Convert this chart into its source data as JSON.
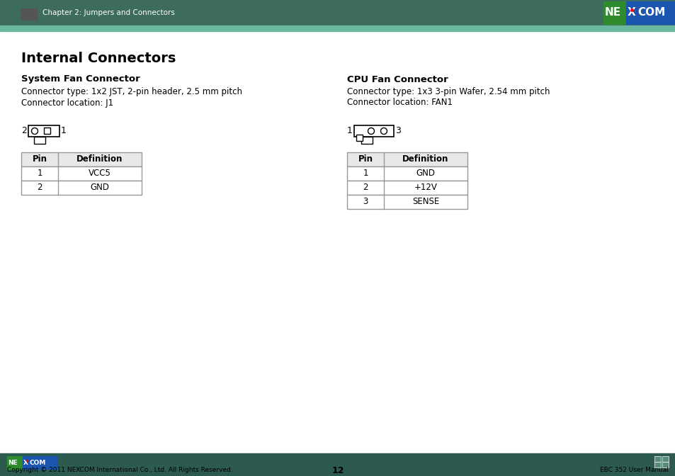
{
  "page_title": "Chapter 2: Jumpers and Connectors",
  "main_title": "Internal Connectors",
  "section1_title": "System Fan Connector",
  "section1_line1": "Connector type: 1x2 JST, 2-pin header, 2.5 mm pitch",
  "section1_line2": "Connector location: J1",
  "section1_table_headers": [
    "Pin",
    "Definition"
  ],
  "section1_table_data": [
    [
      "1",
      "VCC5"
    ],
    [
      "2",
      "GND"
    ]
  ],
  "section2_title": "CPU Fan Connector",
  "section2_line1": "Connector type: 1x3 3-pin Wafer, 2.54 mm pitch",
  "section2_line2": "Connector location: FAN1",
  "section2_table_headers": [
    "Pin",
    "Definition"
  ],
  "section2_table_data": [
    [
      "1",
      "GND"
    ],
    [
      "2",
      "+12V"
    ],
    [
      "3",
      "SENSE"
    ]
  ],
  "footer_left": "Copyright © 2011 NEXCOM International Co., Ltd. All Rights Reserved.",
  "footer_center": "12",
  "footer_right": "EBC 352 User Manual",
  "header_bar_color": "#3d6b5e",
  "teal_line_color": "#6ab8a0",
  "footer_bar_color": "#2d5a4e",
  "logo_bg_blue": "#1a56b0",
  "logo_bg_green": "#2e8b2e",
  "bg_color": "#ffffff",
  "text_color": "#000000",
  "table_border_color": "#999999",
  "table_header_bg": "#e8e8e8",
  "dark_accent_color": "#555555"
}
